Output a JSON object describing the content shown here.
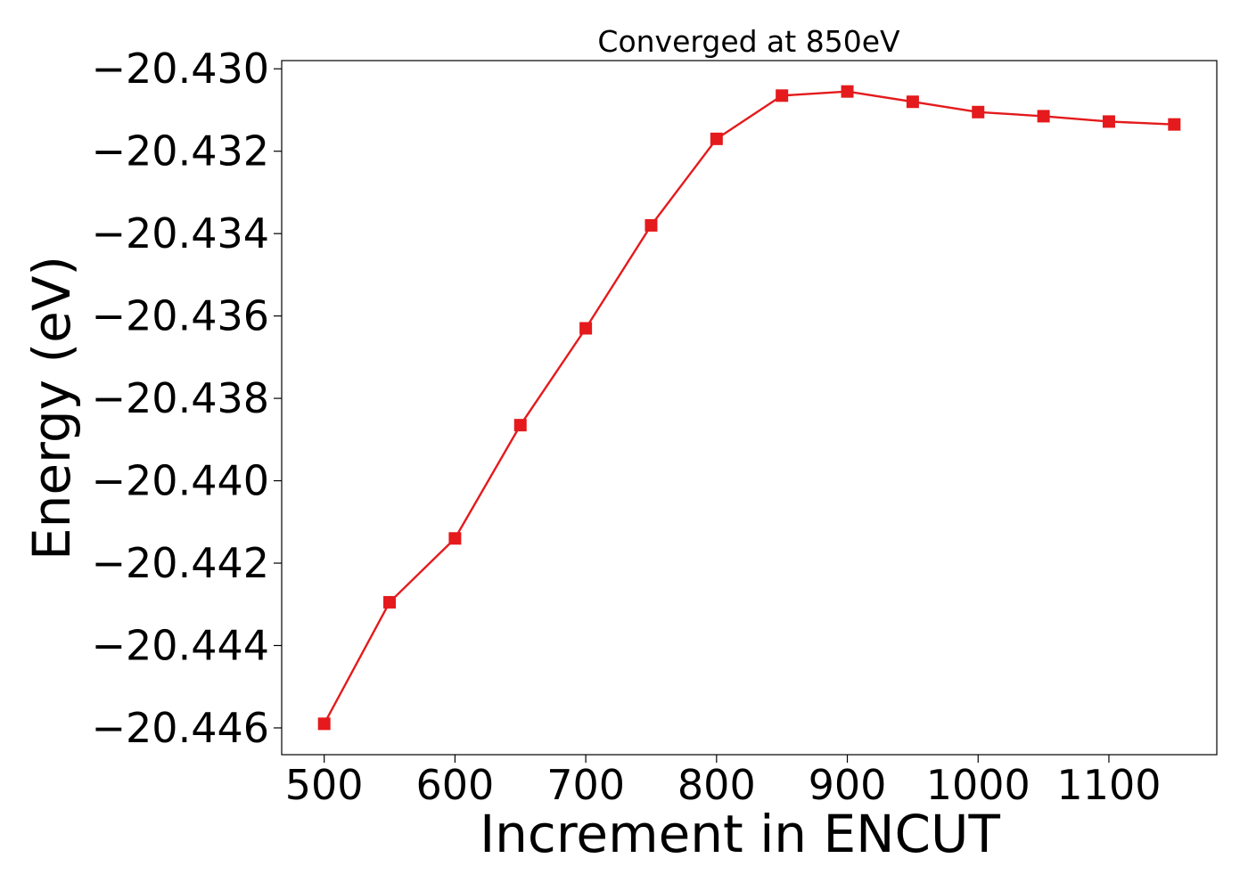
{
  "chart_data": {
    "type": "line",
    "title": "Converged at 850eV",
    "xlabel": "Increment in ENCUT",
    "ylabel": "Energy (eV)",
    "x": [
      500,
      550,
      600,
      650,
      700,
      750,
      800,
      850,
      900,
      950,
      1000,
      1050,
      1100,
      1150
    ],
    "series": [
      {
        "values": [
          -20.4459,
          -20.44295,
          -20.4414,
          -20.43865,
          -20.4363,
          -20.4338,
          -20.4317,
          -20.43065,
          -20.43055,
          -20.4308,
          -20.43105,
          -20.43115,
          -20.43128,
          -20.43135
        ],
        "color": "#e41a1c",
        "marker": "square"
      }
    ],
    "xlim": [
      467.5,
      1182.5
    ],
    "ylim": [
      -20.44665,
      -20.4298
    ],
    "xticks": [
      500,
      600,
      700,
      800,
      900,
      1000,
      1100
    ],
    "xtick_labels": [
      "500",
      "600",
      "700",
      "800",
      "900",
      "1000",
      "1100"
    ],
    "yticks": [
      -20.446,
      -20.444,
      -20.442,
      -20.44,
      -20.438,
      -20.436,
      -20.434,
      -20.432,
      -20.43
    ],
    "ytick_labels": [
      "−20.446",
      "−20.444",
      "−20.442",
      "−20.440",
      "−20.438",
      "−20.436",
      "−20.434",
      "−20.432",
      "−20.430"
    ],
    "grid": false,
    "legend": "none"
  }
}
